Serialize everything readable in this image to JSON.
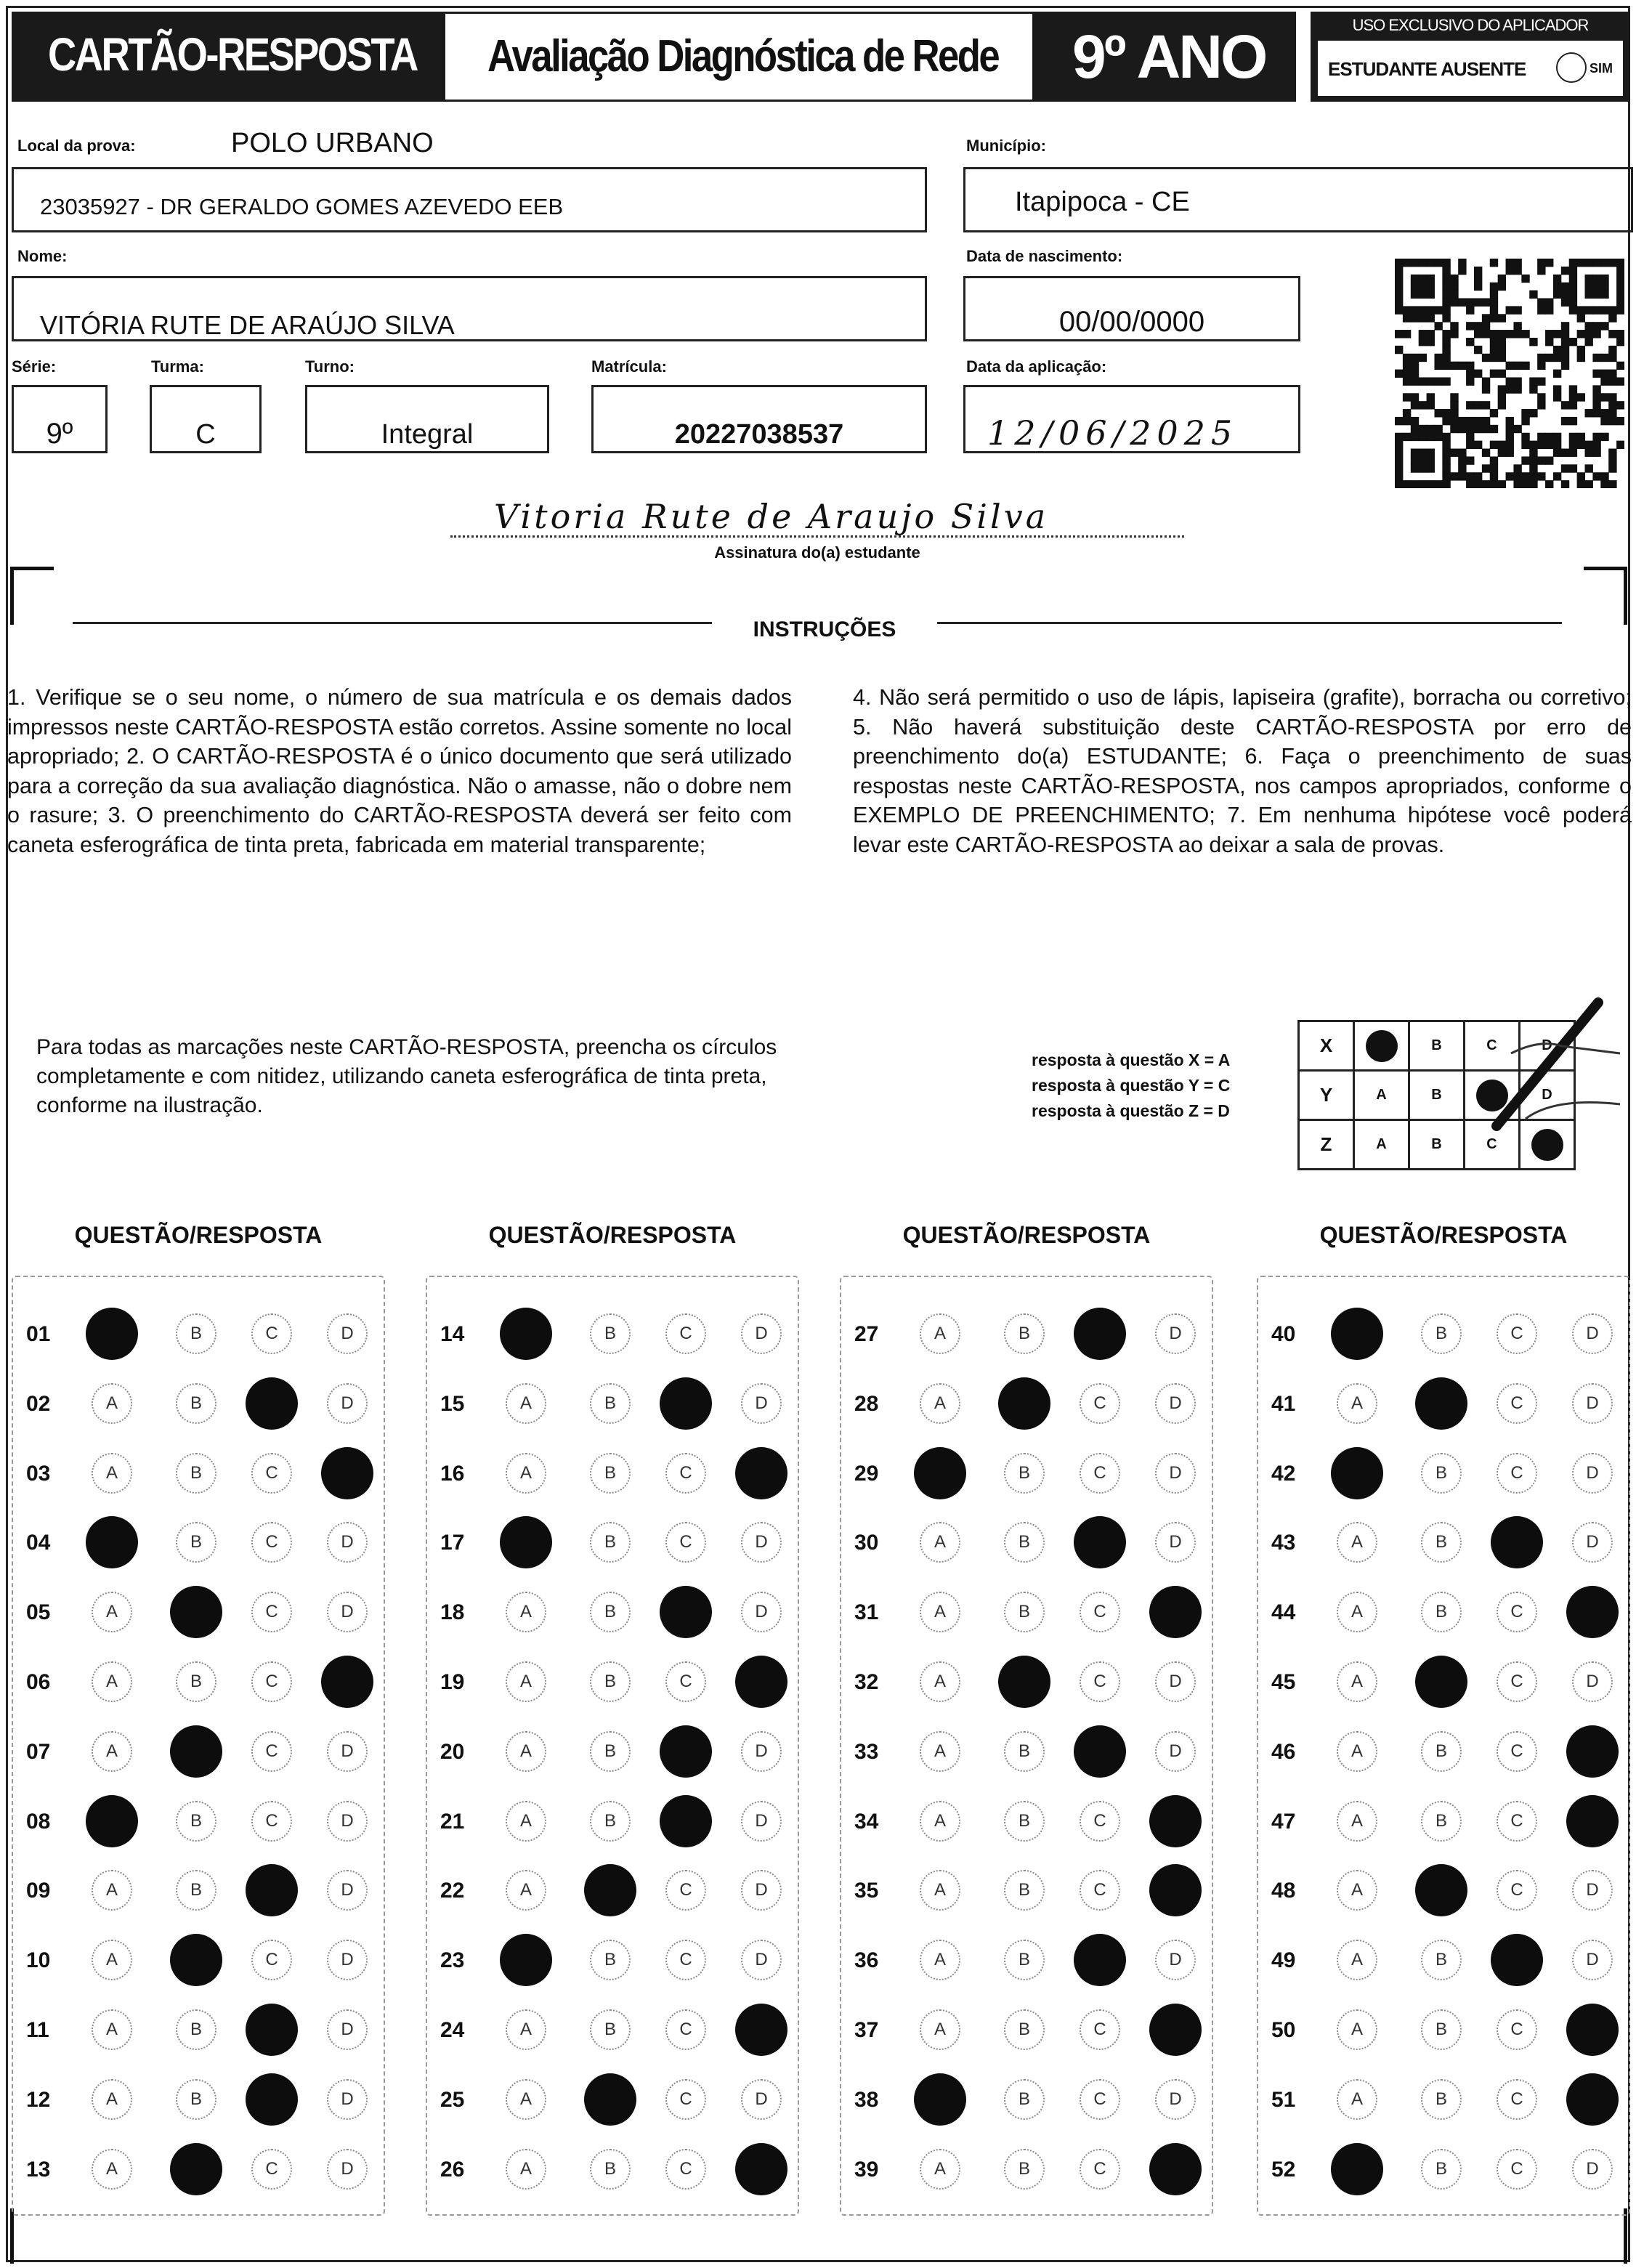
{
  "header": {
    "card_title": "CARTÃO-RESPOSTA",
    "exam_title": "Avaliação Diagnóstica de Rede",
    "grade": "9º ANO",
    "applicator": {
      "heading": "USO EXCLUSIVO DO APLICADOR",
      "absent_label": "ESTUDANTE AUSENTE",
      "absent_option": "SIM",
      "absent_checked": false
    }
  },
  "fields": {
    "local_label": "Local da prova:",
    "local_value": "POLO URBANO",
    "school": "23035927 - DR GERALDO GOMES AZEVEDO EEB",
    "municipio_label": "Município:",
    "municipio": "Itapipoca - CE",
    "nome_label": "Nome:",
    "nome": "VITÓRIA RUTE DE ARAÚJO SILVA",
    "nascimento_label": "Data de nascimento:",
    "nascimento": "00/00/0000",
    "serie_label": "Série:",
    "serie": "9º",
    "turma_label": "Turma:",
    "turma": "C",
    "turno_label": "Turno:",
    "turno": "Integral",
    "matricula_label": "Matrícula:",
    "matricula": "20227038537",
    "aplicacao_label": "Data da aplicação:",
    "aplicacao": "12/06/2025"
  },
  "signature": {
    "text": "Vitoria Rute de Araujo Silva",
    "label": "Assinatura do(a) estudante"
  },
  "instructions": {
    "title": "INSTRUÇÕES",
    "left": "1. Verifique se o seu nome, o número de sua matrícula e os demais dados impressos neste CARTÃO-RESPOSTA estão corretos. Assine somente no local apropriado; 2. O CARTÃO-RESPOSTA é o único documento que será utilizado para a correção da sua avaliação diagnóstica. Não o amasse, não o dobre nem o rasure; 3. O preenchimento do CARTÃO-RESPOSTA deverá ser feito com caneta esferográfica de tinta preta, fabricada em material transparente;",
    "right": "4. Não será permitido o uso de lápis, lapiseira (grafite), borracha ou corretivo; 5. Não haverá substituição deste CARTÃO-RESPOSTA por erro de preenchimento do(a) ESTUDANTE; 6. Faça o preenchimento de suas respostas neste CARTÃO-RESPOSTA, nos campos apropriados, conforme o EXEMPLO DE PREENCHIMENTO; 7. Em nenhuma hipótese você poderá levar este CARTÃO-RESPOSTA ao deixar a sala de provas."
  },
  "fill_note": "Para todas as marcações neste CARTÃO-RESPOSTA, preencha os círculos completamente e com nitidez, utilizando caneta esferográfica de tinta preta, conforme na ilustração.",
  "example": {
    "lines": [
      "resposta à questão X = A",
      "resposta à questão Y = C",
      "resposta à questão Z = D"
    ],
    "rows": [
      {
        "q": "X",
        "answer": "A"
      },
      {
        "q": "Y",
        "answer": "C"
      },
      {
        "q": "Z",
        "answer": "D"
      }
    ]
  },
  "options": [
    "A",
    "B",
    "C",
    "D"
  ],
  "column_header": "QUESTÃO/RESPOSTA",
  "answers": [
    [
      "01",
      "A"
    ],
    [
      "02",
      "C"
    ],
    [
      "03",
      "D"
    ],
    [
      "04",
      "A"
    ],
    [
      "05",
      "B"
    ],
    [
      "06",
      "D"
    ],
    [
      "07",
      "B"
    ],
    [
      "08",
      "A"
    ],
    [
      "09",
      "C"
    ],
    [
      "10",
      "B"
    ],
    [
      "11",
      "C"
    ],
    [
      "12",
      "C"
    ],
    [
      "13",
      "B"
    ],
    [
      "14",
      "A"
    ],
    [
      "15",
      "C"
    ],
    [
      "16",
      "D"
    ],
    [
      "17",
      "A"
    ],
    [
      "18",
      "C"
    ],
    [
      "19",
      "D"
    ],
    [
      "20",
      "C"
    ],
    [
      "21",
      "C"
    ],
    [
      "22",
      "B"
    ],
    [
      "23",
      "A"
    ],
    [
      "24",
      "D"
    ],
    [
      "25",
      "B"
    ],
    [
      "26",
      "D"
    ],
    [
      "27",
      "C"
    ],
    [
      "28",
      "B"
    ],
    [
      "29",
      "A"
    ],
    [
      "30",
      "C"
    ],
    [
      "31",
      "D"
    ],
    [
      "32",
      "B"
    ],
    [
      "33",
      "C"
    ],
    [
      "34",
      "D"
    ],
    [
      "35",
      "D"
    ],
    [
      "36",
      "C"
    ],
    [
      "37",
      "D"
    ],
    [
      "38",
      "A"
    ],
    [
      "39",
      "D"
    ],
    [
      "40",
      "A"
    ],
    [
      "41",
      "B"
    ],
    [
      "42",
      "A"
    ],
    [
      "43",
      "C"
    ],
    [
      "44",
      "D"
    ],
    [
      "45",
      "B"
    ],
    [
      "46",
      "D"
    ],
    [
      "47",
      "D"
    ],
    [
      "48",
      "B"
    ],
    [
      "49",
      "C"
    ],
    [
      "50",
      "D"
    ],
    [
      "51",
      "D"
    ],
    [
      "52",
      "A"
    ]
  ]
}
